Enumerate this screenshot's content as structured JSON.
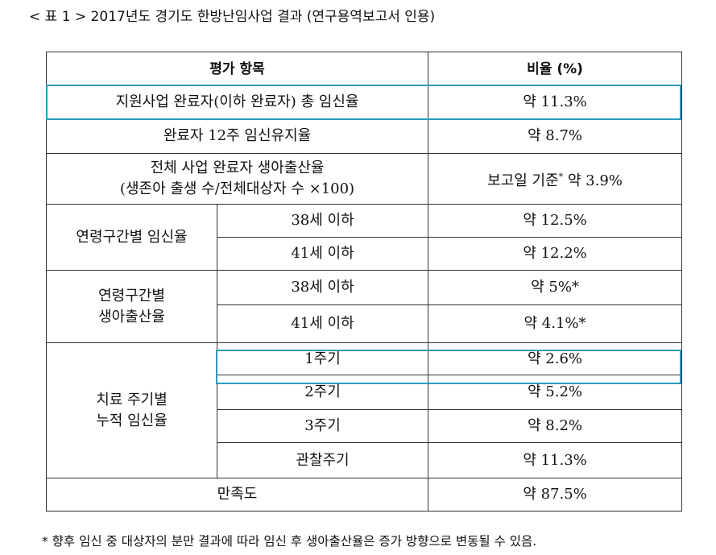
{
  "caption": "< 표 1 > 2017년도 경기도 한방난임사업 결과 (연구용역보고서 인용)",
  "table": {
    "header": {
      "item": "평가 항목",
      "rate": "비율 (%)"
    },
    "rows": {
      "r1": {
        "item": "지원사업 완료자(이하 완료자) 총 임신율",
        "rate": "약 11.3%"
      },
      "r2": {
        "item": "완료자 12주 임신유지율",
        "rate": "약 8.7%"
      },
      "r3": {
        "item_line1": "전체 사업 완료자 생아출산율",
        "item_line2": "(생존아 출생 수/전체대상자 수 ×100)",
        "rate_prefix": "보고일 기준",
        "rate_star": "*",
        "rate_suffix": " 약 3.9%"
      },
      "g1": {
        "label": "연령구간별 임신율",
        "sub": [
          {
            "age": "38세 이하",
            "rate": "약 12.5%"
          },
          {
            "age": "41세 이하",
            "rate": "약 12.2%"
          }
        ]
      },
      "g2": {
        "label_line1": "연령구간별",
        "label_line2": "생아출산율",
        "sub": [
          {
            "age": "38세 이하",
            "rate": "약 5%*"
          },
          {
            "age": "41세 이하",
            "rate": "약 4.1%*"
          }
        ]
      },
      "g3": {
        "label_line1": "치료 주기별",
        "label_line2": "누적 임신율",
        "sub": [
          {
            "cycle": "1주기",
            "rate": "약 2.6%"
          },
          {
            "cycle": "2주기",
            "rate": "약 5.2%"
          },
          {
            "cycle": "3주기",
            "rate": "약 8.2%"
          },
          {
            "cycle": "관찰주기",
            "rate": "약 11.3%"
          }
        ]
      },
      "r_last": {
        "item": "만족도",
        "rate": "약 87.5%"
      }
    }
  },
  "footnote": "* 향후 임신 중 대상자의 분만 결과에 따라 임신 후 생아출산율은 증가 방향으로 변동될 수 있음.",
  "colors": {
    "highlight": "#2a9bbf",
    "border": "#333333",
    "text": "#111111"
  }
}
